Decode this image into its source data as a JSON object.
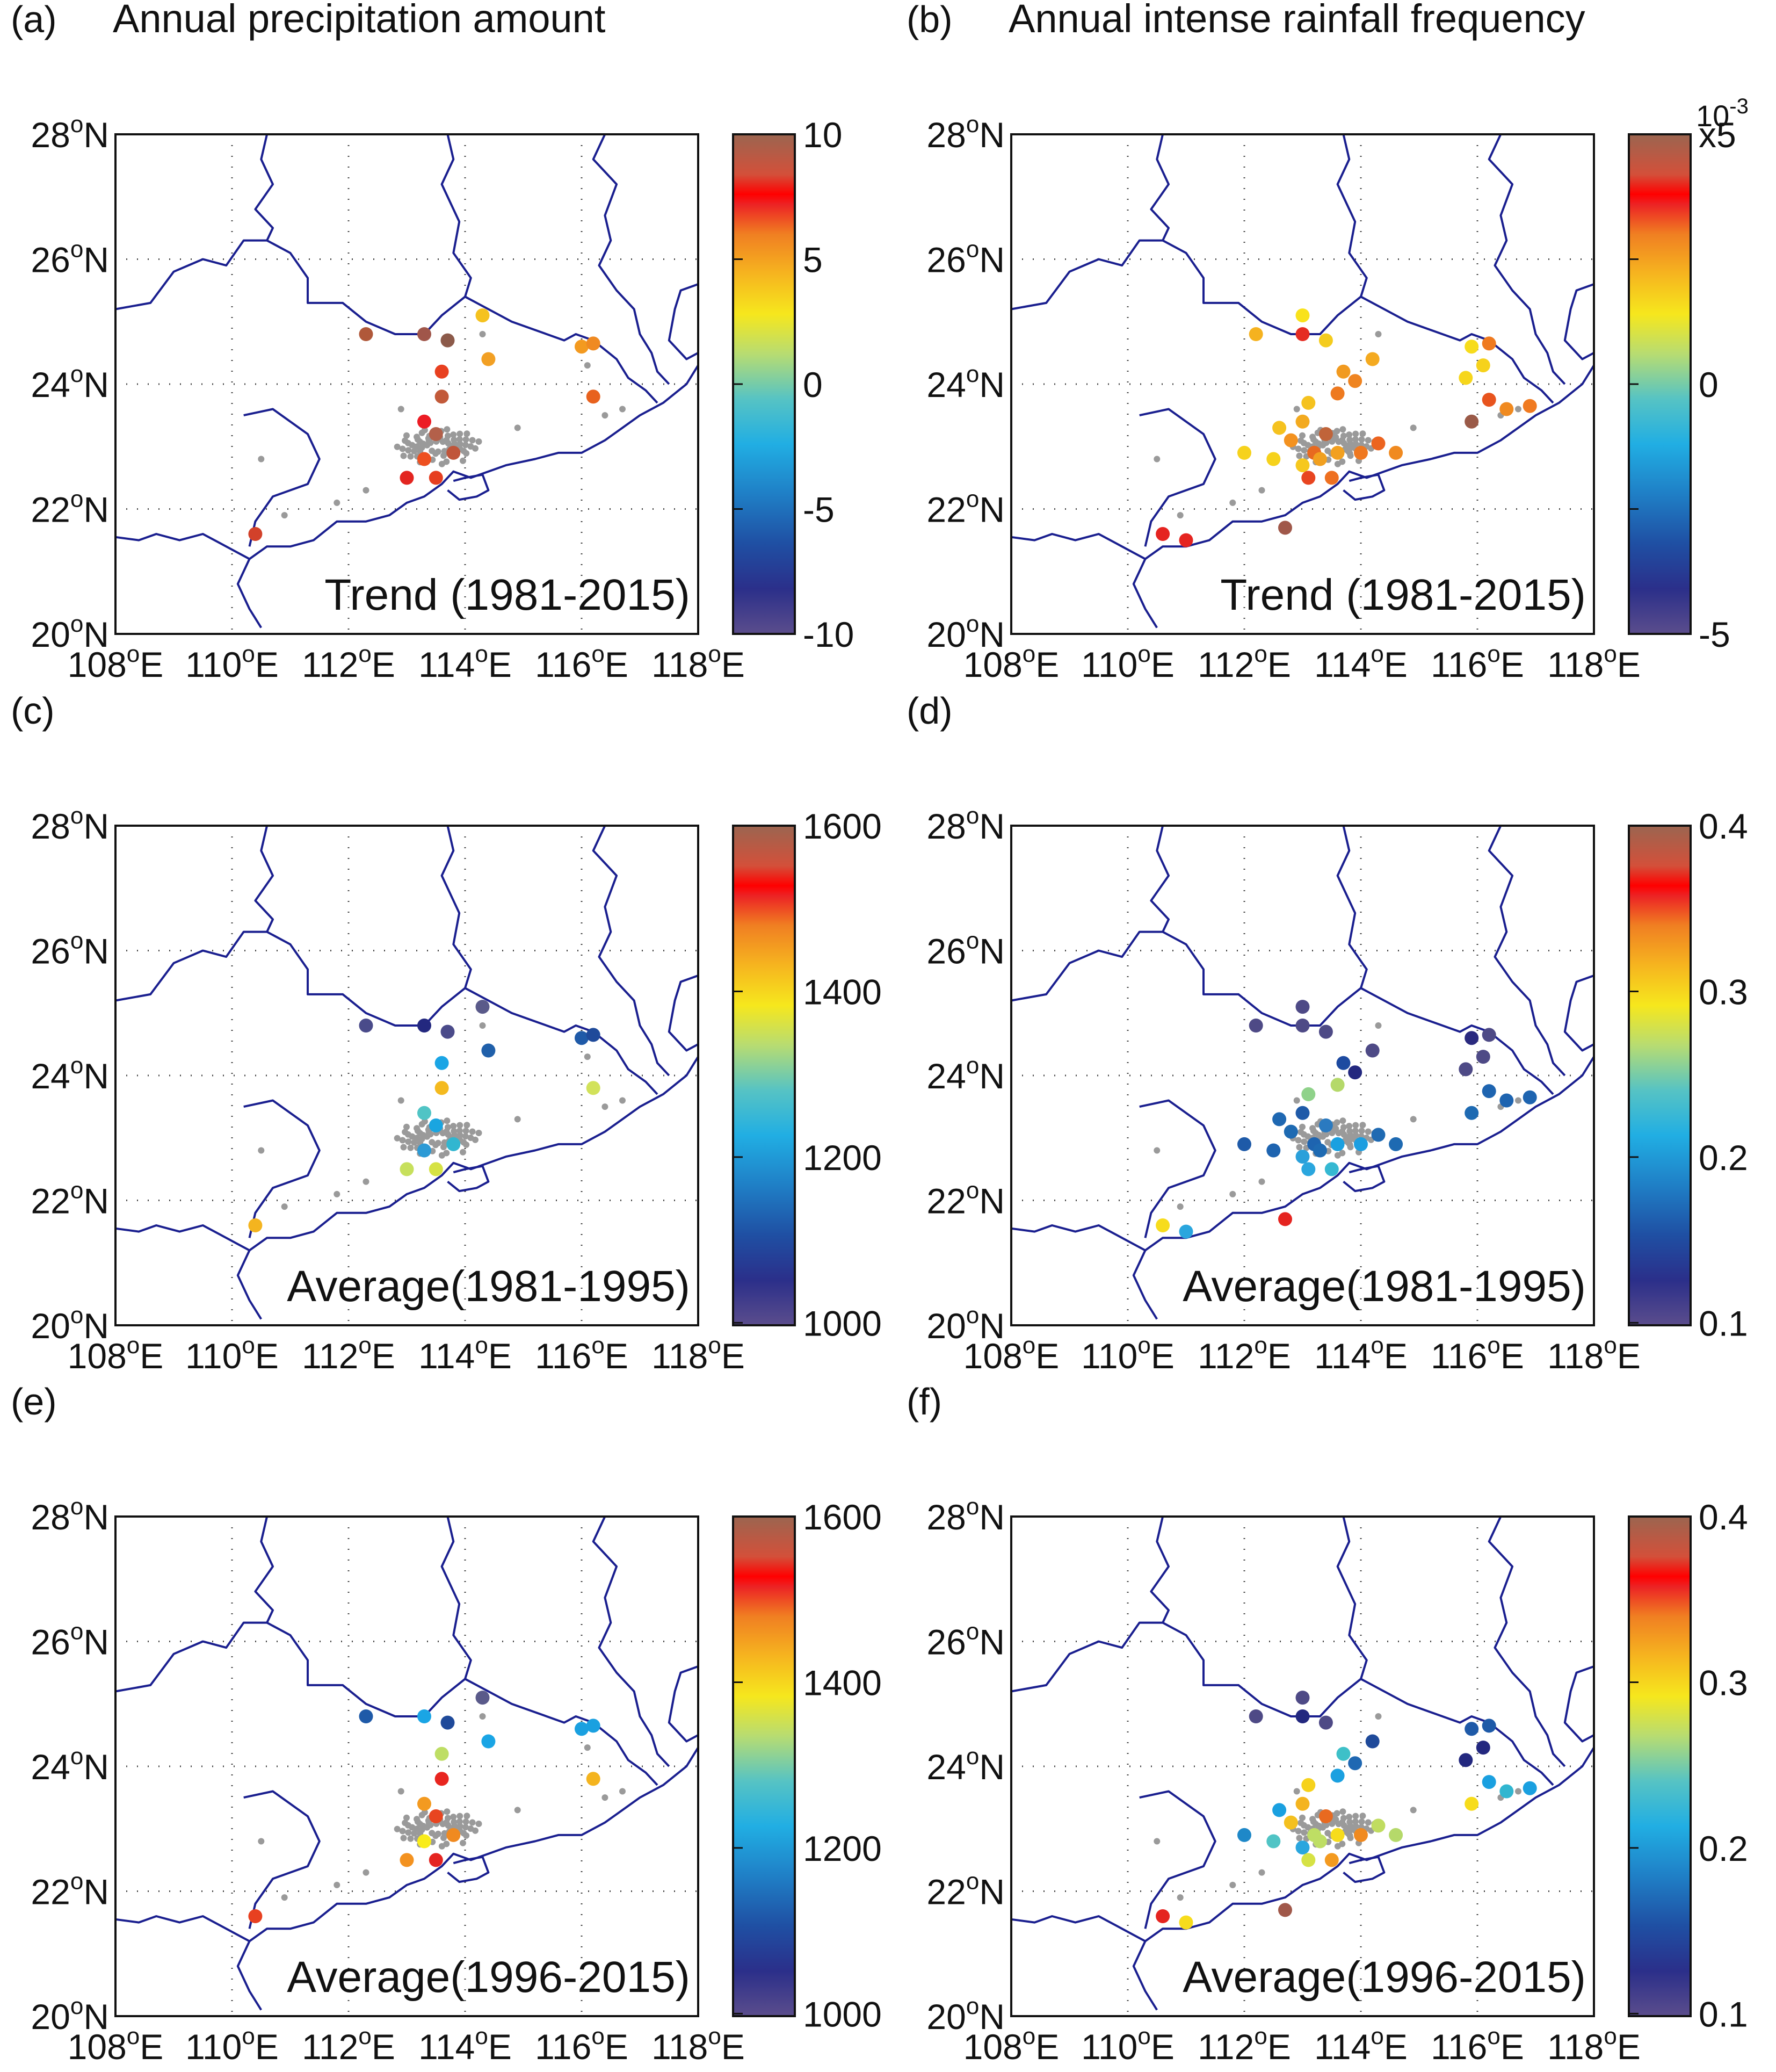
{
  "figure": {
    "panels": [
      {
        "id": "a",
        "letter": "(a)",
        "title": "Annual precipitation amount",
        "annotation": "Trend (1981-2015)",
        "colorbar": {
          "ticks": [
            "10",
            "5",
            "0",
            "-5",
            "-10"
          ],
          "multiplier_text": ""
        },
        "stations": [
          {
            "lon": 112.3,
            "lat": 24.8,
            "color": "#b0583a"
          },
          {
            "lon": 113.3,
            "lat": 24.8,
            "color": "#a0564a"
          },
          {
            "lon": 113.7,
            "lat": 24.7,
            "color": "#8c5a4a"
          },
          {
            "lon": 114.3,
            "lat": 25.1,
            "color": "#f5c21f"
          },
          {
            "lon": 114.4,
            "lat": 24.4,
            "color": "#f2a024"
          },
          {
            "lon": 113.6,
            "lat": 24.2,
            "color": "#e84020"
          },
          {
            "lon": 113.6,
            "lat": 23.8,
            "color": "#c25a3a"
          },
          {
            "lon": 113.3,
            "lat": 23.4,
            "color": "#ec1c24"
          },
          {
            "lon": 113.5,
            "lat": 23.2,
            "color": "#b3604a"
          },
          {
            "lon": 113.8,
            "lat": 22.9,
            "color": "#c0553a"
          },
          {
            "lon": 113.3,
            "lat": 22.8,
            "color": "#ee5020"
          },
          {
            "lon": 113.0,
            "lat": 22.5,
            "color": "#e32520"
          },
          {
            "lon": 113.5,
            "lat": 22.5,
            "color": "#e63e20"
          },
          {
            "lon": 116.0,
            "lat": 24.6,
            "color": "#f39a20"
          },
          {
            "lon": 116.2,
            "lat": 24.65,
            "color": "#ef8a22"
          },
          {
            "lon": 116.2,
            "lat": 23.8,
            "color": "#e8621e"
          },
          {
            "lon": 110.4,
            "lat": 21.6,
            "color": "#d2412a"
          }
        ]
      },
      {
        "id": "b",
        "letter": "(b)",
        "title": "Annual intense rainfall frequency",
        "annotation": "Trend (1981-2015)",
        "colorbar": {
          "ticks": [
            "x5",
            "",
            "0",
            "",
            "-5"
          ],
          "multiplier_text": "10",
          "multiplier_exp": "-3"
        },
        "stations": [
          {
            "lon": 112.2,
            "lat": 24.8,
            "color": "#f5b21f"
          },
          {
            "lon": 113.0,
            "lat": 25.1,
            "color": "#f9e21b"
          },
          {
            "lon": 113.0,
            "lat": 24.8,
            "color": "#e52c22"
          },
          {
            "lon": 113.4,
            "lat": 24.7,
            "color": "#f4cc1e"
          },
          {
            "lon": 114.2,
            "lat": 24.4,
            "color": "#f4aa20"
          },
          {
            "lon": 113.9,
            "lat": 24.05,
            "color": "#ef8420"
          },
          {
            "lon": 113.7,
            "lat": 24.2,
            "color": "#f19a20"
          },
          {
            "lon": 113.1,
            "lat": 23.7,
            "color": "#f5c21f"
          },
          {
            "lon": 113.6,
            "lat": 23.85,
            "color": "#ee7a20"
          },
          {
            "lon": 112.6,
            "lat": 23.3,
            "color": "#f5c21f"
          },
          {
            "lon": 113.0,
            "lat": 23.4,
            "color": "#f3aa1f"
          },
          {
            "lon": 113.4,
            "lat": 23.2,
            "color": "#c0643a"
          },
          {
            "lon": 112.8,
            "lat": 23.1,
            "color": "#f39220"
          },
          {
            "lon": 113.2,
            "lat": 22.9,
            "color": "#e86a20"
          },
          {
            "lon": 113.0,
            "lat": 22.7,
            "color": "#f6c81e"
          },
          {
            "lon": 113.3,
            "lat": 22.8,
            "color": "#f1a020"
          },
          {
            "lon": 113.6,
            "lat": 22.9,
            "color": "#f2a020"
          },
          {
            "lon": 112.5,
            "lat": 22.8,
            "color": "#f6d21c"
          },
          {
            "lon": 113.1,
            "lat": 22.5,
            "color": "#e84520"
          },
          {
            "lon": 113.5,
            "lat": 22.5,
            "color": "#ee7020"
          },
          {
            "lon": 114.0,
            "lat": 22.9,
            "color": "#ef7820"
          },
          {
            "lon": 114.3,
            "lat": 23.05,
            "color": "#ec6420"
          },
          {
            "lon": 114.6,
            "lat": 22.9,
            "color": "#f08a20"
          },
          {
            "lon": 112.0,
            "lat": 22.9,
            "color": "#f6d21c"
          },
          {
            "lon": 115.9,
            "lat": 24.6,
            "color": "#f7dc1c"
          },
          {
            "lon": 116.2,
            "lat": 24.65,
            "color": "#ef7a20"
          },
          {
            "lon": 116.1,
            "lat": 24.3,
            "color": "#f6d21c"
          },
          {
            "lon": 115.8,
            "lat": 24.1,
            "color": "#f6d61c"
          },
          {
            "lon": 116.2,
            "lat": 23.75,
            "color": "#e8541e"
          },
          {
            "lon": 115.9,
            "lat": 23.4,
            "color": "#9a5a48"
          },
          {
            "lon": 116.5,
            "lat": 23.6,
            "color": "#f08a20"
          },
          {
            "lon": 116.9,
            "lat": 23.65,
            "color": "#f07a20"
          },
          {
            "lon": 110.6,
            "lat": 21.6,
            "color": "#e52420"
          },
          {
            "lon": 111.0,
            "lat": 21.5,
            "color": "#e52420"
          },
          {
            "lon": 112.7,
            "lat": 21.7,
            "color": "#a0584a"
          }
        ]
      },
      {
        "id": "c",
        "letter": "(c)",
        "title": "",
        "annotation": "Average(1981-1995)",
        "colorbar": {
          "ticks": [
            "1600",
            "1400",
            "1200",
            "1000"
          ],
          "multiplier_text": ""
        },
        "stations": [
          {
            "lon": 112.3,
            "lat": 24.8,
            "color": "#4a4b8a"
          },
          {
            "lon": 113.3,
            "lat": 24.8,
            "color": "#23287f"
          },
          {
            "lon": 113.7,
            "lat": 24.7,
            "color": "#4b4b8a"
          },
          {
            "lon": 114.3,
            "lat": 25.1,
            "color": "#5a5a8a"
          },
          {
            "lon": 114.4,
            "lat": 24.4,
            "color": "#2060aa"
          },
          {
            "lon": 113.6,
            "lat": 24.2,
            "color": "#1aa5e5"
          },
          {
            "lon": 113.6,
            "lat": 23.8,
            "color": "#f4ba1f"
          },
          {
            "lon": 113.3,
            "lat": 23.4,
            "color": "#50c4c5"
          },
          {
            "lon": 113.5,
            "lat": 23.2,
            "color": "#1aa5e0"
          },
          {
            "lon": 113.8,
            "lat": 22.9,
            "color": "#31b6d0"
          },
          {
            "lon": 113.3,
            "lat": 22.8,
            "color": "#2c9ad5"
          },
          {
            "lon": 113.0,
            "lat": 22.5,
            "color": "#c7e05c"
          },
          {
            "lon": 113.5,
            "lat": 22.5,
            "color": "#d6e244"
          },
          {
            "lon": 116.0,
            "lat": 24.6,
            "color": "#1f5aa8"
          },
          {
            "lon": 116.2,
            "lat": 24.65,
            "color": "#1f4a9a"
          },
          {
            "lon": 116.2,
            "lat": 23.8,
            "color": "#d2e25a"
          },
          {
            "lon": 110.4,
            "lat": 21.6,
            "color": "#f4b41f"
          }
        ]
      },
      {
        "id": "d",
        "letter": "(d)",
        "title": "",
        "annotation": "Average(1981-1995)",
        "colorbar": {
          "ticks": [
            "0.4",
            "0.3",
            "0.2",
            "0.1"
          ],
          "multiplier_text": ""
        },
        "stations": [
          {
            "lon": 112.2,
            "lat": 24.8,
            "color": "#4e4a86"
          },
          {
            "lon": 113.0,
            "lat": 25.1,
            "color": "#4e4a86"
          },
          {
            "lon": 113.0,
            "lat": 24.8,
            "color": "#4e4a86"
          },
          {
            "lon": 113.4,
            "lat": 24.7,
            "color": "#4e4a86"
          },
          {
            "lon": 114.2,
            "lat": 24.4,
            "color": "#4e4a86"
          },
          {
            "lon": 113.9,
            "lat": 24.05,
            "color": "#23287f"
          },
          {
            "lon": 113.7,
            "lat": 24.2,
            "color": "#1d4aa0"
          },
          {
            "lon": 113.1,
            "lat": 23.7,
            "color": "#8fd28a"
          },
          {
            "lon": 113.6,
            "lat": 23.85,
            "color": "#b5d96a"
          },
          {
            "lon": 112.6,
            "lat": 23.3,
            "color": "#1f68b2"
          },
          {
            "lon": 113.0,
            "lat": 23.4,
            "color": "#1f5aa8"
          },
          {
            "lon": 113.4,
            "lat": 23.2,
            "color": "#2b7ac0"
          },
          {
            "lon": 112.8,
            "lat": 23.1,
            "color": "#1e6ab2"
          },
          {
            "lon": 113.2,
            "lat": 22.9,
            "color": "#1e64b0"
          },
          {
            "lon": 113.0,
            "lat": 22.7,
            "color": "#2aa0da"
          },
          {
            "lon": 113.3,
            "lat": 22.8,
            "color": "#1e6ab2"
          },
          {
            "lon": 113.6,
            "lat": 22.9,
            "color": "#1aa0e0"
          },
          {
            "lon": 112.5,
            "lat": 22.8,
            "color": "#1e64b0"
          },
          {
            "lon": 113.1,
            "lat": 22.5,
            "color": "#2aa6de"
          },
          {
            "lon": 113.5,
            "lat": 22.5,
            "color": "#35b8d2"
          },
          {
            "lon": 114.0,
            "lat": 22.9,
            "color": "#1c9ee0"
          },
          {
            "lon": 114.3,
            "lat": 23.05,
            "color": "#1f6ab2"
          },
          {
            "lon": 114.6,
            "lat": 22.9,
            "color": "#1e6ab2"
          },
          {
            "lon": 112.0,
            "lat": 22.9,
            "color": "#1e5aa8"
          },
          {
            "lon": 115.9,
            "lat": 24.6,
            "color": "#2a2a7f"
          },
          {
            "lon": 116.2,
            "lat": 24.65,
            "color": "#4e4a86"
          },
          {
            "lon": 116.1,
            "lat": 24.3,
            "color": "#4e4a86"
          },
          {
            "lon": 115.8,
            "lat": 24.1,
            "color": "#4e4a86"
          },
          {
            "lon": 116.2,
            "lat": 23.75,
            "color": "#1e64b0"
          },
          {
            "lon": 115.9,
            "lat": 23.4,
            "color": "#1e6ab2"
          },
          {
            "lon": 116.5,
            "lat": 23.6,
            "color": "#1e64b0"
          },
          {
            "lon": 116.9,
            "lat": 23.65,
            "color": "#1e64b0"
          },
          {
            "lon": 110.6,
            "lat": 21.6,
            "color": "#f7dc1c"
          },
          {
            "lon": 111.0,
            "lat": 21.5,
            "color": "#2aa6de"
          },
          {
            "lon": 112.7,
            "lat": 21.7,
            "color": "#e52420"
          }
        ]
      },
      {
        "id": "e",
        "letter": "(e)",
        "title": "",
        "annotation": "Average(1996-2015)",
        "colorbar": {
          "ticks": [
            "1600",
            "1400",
            "1200",
            "1000"
          ],
          "multiplier_text": ""
        },
        "stations": [
          {
            "lon": 112.3,
            "lat": 24.8,
            "color": "#1f5aa8"
          },
          {
            "lon": 113.3,
            "lat": 24.8,
            "color": "#1aa5e5"
          },
          {
            "lon": 113.7,
            "lat": 24.7,
            "color": "#1f4a9a"
          },
          {
            "lon": 114.3,
            "lat": 25.1,
            "color": "#5a5a8a"
          },
          {
            "lon": 114.4,
            "lat": 24.4,
            "color": "#1aa5e5"
          },
          {
            "lon": 113.6,
            "lat": 24.2,
            "color": "#bede64"
          },
          {
            "lon": 113.6,
            "lat": 23.8,
            "color": "#e8251f"
          },
          {
            "lon": 113.3,
            "lat": 23.4,
            "color": "#f39a20"
          },
          {
            "lon": 113.5,
            "lat": 23.2,
            "color": "#e84520"
          },
          {
            "lon": 113.8,
            "lat": 22.9,
            "color": "#f08a20"
          },
          {
            "lon": 113.3,
            "lat": 22.8,
            "color": "#f9ec1a"
          },
          {
            "lon": 113.0,
            "lat": 22.5,
            "color": "#f39220"
          },
          {
            "lon": 113.5,
            "lat": 22.5,
            "color": "#e52420"
          },
          {
            "lon": 116.0,
            "lat": 24.6,
            "color": "#1aa0e0"
          },
          {
            "lon": 116.2,
            "lat": 24.65,
            "color": "#1aa0e0"
          },
          {
            "lon": 116.2,
            "lat": 23.8,
            "color": "#f4b41f"
          },
          {
            "lon": 110.4,
            "lat": 21.6,
            "color": "#e84020"
          }
        ]
      },
      {
        "id": "f",
        "letter": "(f)",
        "title": "",
        "annotation": "Average(1996-2015)",
        "colorbar": {
          "ticks": [
            "0.4",
            "0.3",
            "0.2",
            "0.1"
          ],
          "multiplier_text": ""
        },
        "stations": [
          {
            "lon": 112.2,
            "lat": 24.8,
            "color": "#4e4a86"
          },
          {
            "lon": 113.0,
            "lat": 25.1,
            "color": "#4e4a86"
          },
          {
            "lon": 113.0,
            "lat": 24.8,
            "color": "#23287f"
          },
          {
            "lon": 113.4,
            "lat": 24.7,
            "color": "#4e4a86"
          },
          {
            "lon": 114.2,
            "lat": 24.4,
            "color": "#1f4a9a"
          },
          {
            "lon": 113.9,
            "lat": 24.05,
            "color": "#1f68b2"
          },
          {
            "lon": 113.7,
            "lat": 24.2,
            "color": "#3ec0c8"
          },
          {
            "lon": 113.1,
            "lat": 23.7,
            "color": "#f6d21c"
          },
          {
            "lon": 113.6,
            "lat": 23.85,
            "color": "#1aa0e0"
          },
          {
            "lon": 112.6,
            "lat": 23.3,
            "color": "#1aa0e0"
          },
          {
            "lon": 113.0,
            "lat": 23.4,
            "color": "#f4b41f"
          },
          {
            "lon": 113.4,
            "lat": 23.2,
            "color": "#e86a20"
          },
          {
            "lon": 112.8,
            "lat": 23.1,
            "color": "#f4c01f"
          },
          {
            "lon": 113.2,
            "lat": 22.9,
            "color": "#bede64"
          },
          {
            "lon": 113.0,
            "lat": 22.7,
            "color": "#2aa6de"
          },
          {
            "lon": 113.3,
            "lat": 22.8,
            "color": "#bede64"
          },
          {
            "lon": 113.6,
            "lat": 22.9,
            "color": "#f7dc1c"
          },
          {
            "lon": 112.5,
            "lat": 22.8,
            "color": "#50c4c5"
          },
          {
            "lon": 113.1,
            "lat": 22.5,
            "color": "#d6e244"
          },
          {
            "lon": 113.5,
            "lat": 22.5,
            "color": "#f39a20"
          },
          {
            "lon": 114.0,
            "lat": 22.9,
            "color": "#f08a20"
          },
          {
            "lon": 114.3,
            "lat": 23.05,
            "color": "#c0dc60"
          },
          {
            "lon": 114.6,
            "lat": 22.9,
            "color": "#b5d96a"
          },
          {
            "lon": 112.0,
            "lat": 22.9,
            "color": "#1e88c8"
          },
          {
            "lon": 115.9,
            "lat": 24.6,
            "color": "#1f5aa8"
          },
          {
            "lon": 116.2,
            "lat": 24.65,
            "color": "#1e5aa8"
          },
          {
            "lon": 116.1,
            "lat": 24.3,
            "color": "#23287f"
          },
          {
            "lon": 115.8,
            "lat": 24.1,
            "color": "#23287f"
          },
          {
            "lon": 116.2,
            "lat": 23.75,
            "color": "#1aa0e0"
          },
          {
            "lon": 115.9,
            "lat": 23.4,
            "color": "#f7dc1c"
          },
          {
            "lon": 116.5,
            "lat": 23.6,
            "color": "#31b6d0"
          },
          {
            "lon": 116.9,
            "lat": 23.65,
            "color": "#1aa0e0"
          },
          {
            "lon": 110.6,
            "lat": 21.6,
            "color": "#e52420"
          },
          {
            "lon": 111.0,
            "lat": 21.5,
            "color": "#f7dc1c"
          },
          {
            "lon": 112.7,
            "lat": 21.7,
            "color": "#a0584a"
          }
        ]
      }
    ],
    "axes": {
      "lon_range": [
        108,
        118
      ],
      "lat_range": [
        20,
        28
      ],
      "x_ticks": [
        "108",
        "110",
        "112",
        "114",
        "116",
        "118"
      ],
      "x_suffix": "E",
      "y_ticks": [
        "20",
        "22",
        "24",
        "26",
        "28"
      ],
      "y_suffix": "N",
      "degree_symbol": "o"
    },
    "colors": {
      "boundary": "#1a1f8f",
      "gray_stations": "#9a9a9a",
      "colormap": [
        "#5b4d8c",
        "#2b2f8a",
        "#1f4fa3",
        "#1f7fc6",
        "#21aee3",
        "#56c3c4",
        "#b7dc72",
        "#f6e71d",
        "#f6b51f",
        "#f07f22",
        "#ec2224",
        "#b25e44"
      ]
    }
  }
}
